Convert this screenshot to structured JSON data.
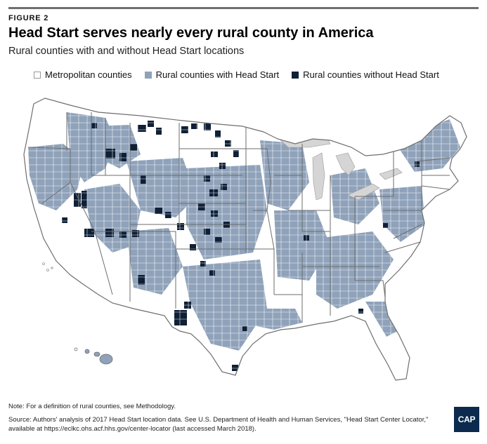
{
  "figure_label": "FIGURE 2",
  "title": "Head Start serves nearly every rural county in America",
  "subtitle": "Rural counties with and without Head Start locations",
  "legend": [
    {
      "label": "Metropolitan counties",
      "color": "#ffffff"
    },
    {
      "label": "Rural counties with Head Start",
      "color": "#8fa2ba"
    },
    {
      "label": "Rural counties without Head Start",
      "color": "#0f1f36"
    }
  ],
  "colors": {
    "lakes": "#d5d5d5",
    "county_border": "#ffffff",
    "state_border": "#6e6e6e",
    "rule": "#6f6f6f"
  },
  "note": "Note: For a definition of rural counties, see Methodology.",
  "source_line1": "Source: Authors' analysis of 2017 Head Start location data. See U.S. Department of Health and Human Services, \"Head Start Center Locator,\"",
  "source_line2": "available at https://eclkc.ohs.acf.hhs.gov/center-locator (last accessed March 2018).",
  "logo_text": "CAP"
}
